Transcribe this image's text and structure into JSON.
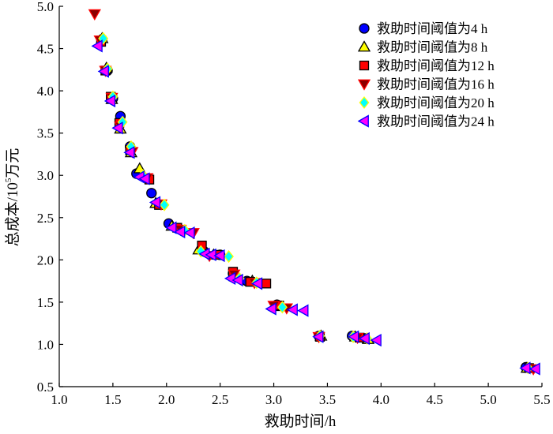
{
  "chart_data": {
    "type": "scatter",
    "title": "",
    "xlabel": "救助时间/h",
    "ylabel_main": "总成本/10",
    "ylabel_sup": "5",
    "ylabel_unit": "万元",
    "xlim": [
      1.0,
      5.5
    ],
    "ylim": [
      0.5,
      5.0
    ],
    "xticks": [
      "1.0",
      "1.5",
      "2.0",
      "2.5",
      "3.0",
      "3.5",
      "4.0",
      "4.5",
      "5.0",
      "5.5"
    ],
    "yticks": [
      "0.5",
      "1.0",
      "1.5",
      "2.0",
      "2.5",
      "3.0",
      "3.5",
      "4.0",
      "4.5",
      "5.0"
    ],
    "grid": false,
    "legend_position": "top-right",
    "series": [
      {
        "name": "救助时间阈值为4 h",
        "marker": "circle",
        "fill": "#0000ff",
        "stroke": "#000000",
        "points": [
          [
            1.4,
            4.61
          ],
          [
            1.45,
            4.24
          ],
          [
            1.5,
            3.91
          ],
          [
            1.57,
            3.7
          ],
          [
            1.66,
            3.34
          ],
          [
            1.72,
            3.02
          ],
          [
            1.86,
            2.79
          ],
          [
            2.02,
            2.43
          ],
          [
            2.15,
            2.35
          ],
          [
            2.35,
            2.1
          ],
          [
            2.5,
            2.06
          ],
          [
            2.62,
            1.84
          ],
          [
            2.75,
            1.75
          ],
          [
            3.03,
            1.47
          ],
          [
            3.42,
            1.1
          ],
          [
            3.73,
            1.1
          ],
          [
            3.85,
            1.07
          ],
          [
            5.35,
            0.73
          ]
        ]
      },
      {
        "name": "救助时间阈值为8 h",
        "marker": "triangle-up",
        "fill": "#ffff00",
        "stroke": "#000000",
        "points": [
          [
            1.4,
            4.62
          ],
          [
            1.44,
            4.27
          ],
          [
            1.49,
            3.9
          ],
          [
            1.57,
            3.55
          ],
          [
            1.67,
            3.27
          ],
          [
            1.75,
            3.08
          ],
          [
            1.9,
            2.67
          ],
          [
            2.05,
            2.4
          ],
          [
            2.3,
            2.12
          ],
          [
            2.44,
            2.06
          ],
          [
            2.64,
            1.8
          ],
          [
            2.8,
            1.75
          ],
          [
            3.05,
            1.45
          ],
          [
            3.44,
            1.1
          ],
          [
            3.76,
            1.09
          ],
          [
            3.88,
            1.06
          ],
          [
            5.36,
            0.72
          ]
        ]
      },
      {
        "name": "救助时间阈值为12 h",
        "marker": "square",
        "fill": "#ff0000",
        "stroke": "#000000",
        "points": [
          [
            1.39,
            4.58
          ],
          [
            1.43,
            4.24
          ],
          [
            1.48,
            3.93
          ],
          [
            1.56,
            3.62
          ],
          [
            1.66,
            3.3
          ],
          [
            1.84,
            2.95
          ],
          [
            1.93,
            2.65
          ],
          [
            2.1,
            2.38
          ],
          [
            2.33,
            2.17
          ],
          [
            2.47,
            2.06
          ],
          [
            2.62,
            1.86
          ],
          [
            2.78,
            1.74
          ],
          [
            2.93,
            1.72
          ],
          [
            3.05,
            1.46
          ],
          [
            3.43,
            1.09
          ],
          [
            3.8,
            1.08
          ],
          [
            5.38,
            0.72
          ]
        ]
      },
      {
        "name": "救助时间阈值为16 h",
        "marker": "triangle-down",
        "fill": "#8b0000",
        "stroke": "#ff0000",
        "points": [
          [
            1.33,
            4.91
          ],
          [
            1.38,
            4.6
          ],
          [
            1.43,
            4.24
          ],
          [
            1.49,
            3.92
          ],
          [
            1.57,
            3.58
          ],
          [
            1.68,
            3.28
          ],
          [
            1.82,
            2.97
          ],
          [
            1.95,
            2.66
          ],
          [
            2.13,
            2.36
          ],
          [
            2.25,
            2.32
          ],
          [
            2.4,
            2.05
          ],
          [
            2.63,
            1.83
          ],
          [
            2.82,
            1.73
          ],
          [
            3.0,
            1.46
          ],
          [
            3.12,
            1.43
          ],
          [
            3.42,
            1.09
          ],
          [
            3.78,
            1.08
          ],
          [
            5.42,
            0.71
          ]
        ]
      },
      {
        "name": "救助时间阈值为20 h",
        "marker": "diamond",
        "fill": "#00ffff",
        "stroke": "#ffff00",
        "points": [
          [
            1.41,
            4.62
          ],
          [
            1.45,
            4.26
          ],
          [
            1.5,
            3.93
          ],
          [
            1.59,
            3.63
          ],
          [
            1.67,
            3.34
          ],
          [
            1.78,
            3.0
          ],
          [
            1.98,
            2.65
          ],
          [
            2.17,
            2.35
          ],
          [
            2.32,
            2.1
          ],
          [
            2.58,
            2.04
          ],
          [
            2.68,
            1.78
          ],
          [
            2.84,
            1.73
          ],
          [
            3.08,
            1.44
          ],
          [
            3.43,
            1.1
          ],
          [
            3.74,
            1.09
          ],
          [
            3.87,
            1.07
          ],
          [
            5.37,
            0.72
          ]
        ]
      },
      {
        "name": "救助时间阈值为24 h",
        "marker": "triangle-left",
        "fill": "#ff00ff",
        "stroke": "#0000ff",
        "points": [
          [
            1.36,
            4.53
          ],
          [
            1.42,
            4.23
          ],
          [
            1.48,
            3.88
          ],
          [
            1.55,
            3.56
          ],
          [
            1.66,
            3.27
          ],
          [
            1.75,
            2.98
          ],
          [
            1.8,
            2.96
          ],
          [
            1.9,
            2.68
          ],
          [
            2.05,
            2.38
          ],
          [
            2.13,
            2.33
          ],
          [
            2.22,
            2.32
          ],
          [
            2.36,
            2.07
          ],
          [
            2.42,
            2.06
          ],
          [
            2.5,
            2.05
          ],
          [
            2.6,
            1.78
          ],
          [
            2.67,
            1.76
          ],
          [
            2.85,
            1.72
          ],
          [
            2.98,
            1.42
          ],
          [
            3.18,
            1.41
          ],
          [
            3.28,
            1.4
          ],
          [
            3.42,
            1.09
          ],
          [
            3.75,
            1.09
          ],
          [
            3.85,
            1.07
          ],
          [
            3.96,
            1.05
          ],
          [
            5.35,
            0.72
          ],
          [
            5.44,
            0.71
          ]
        ]
      }
    ]
  }
}
